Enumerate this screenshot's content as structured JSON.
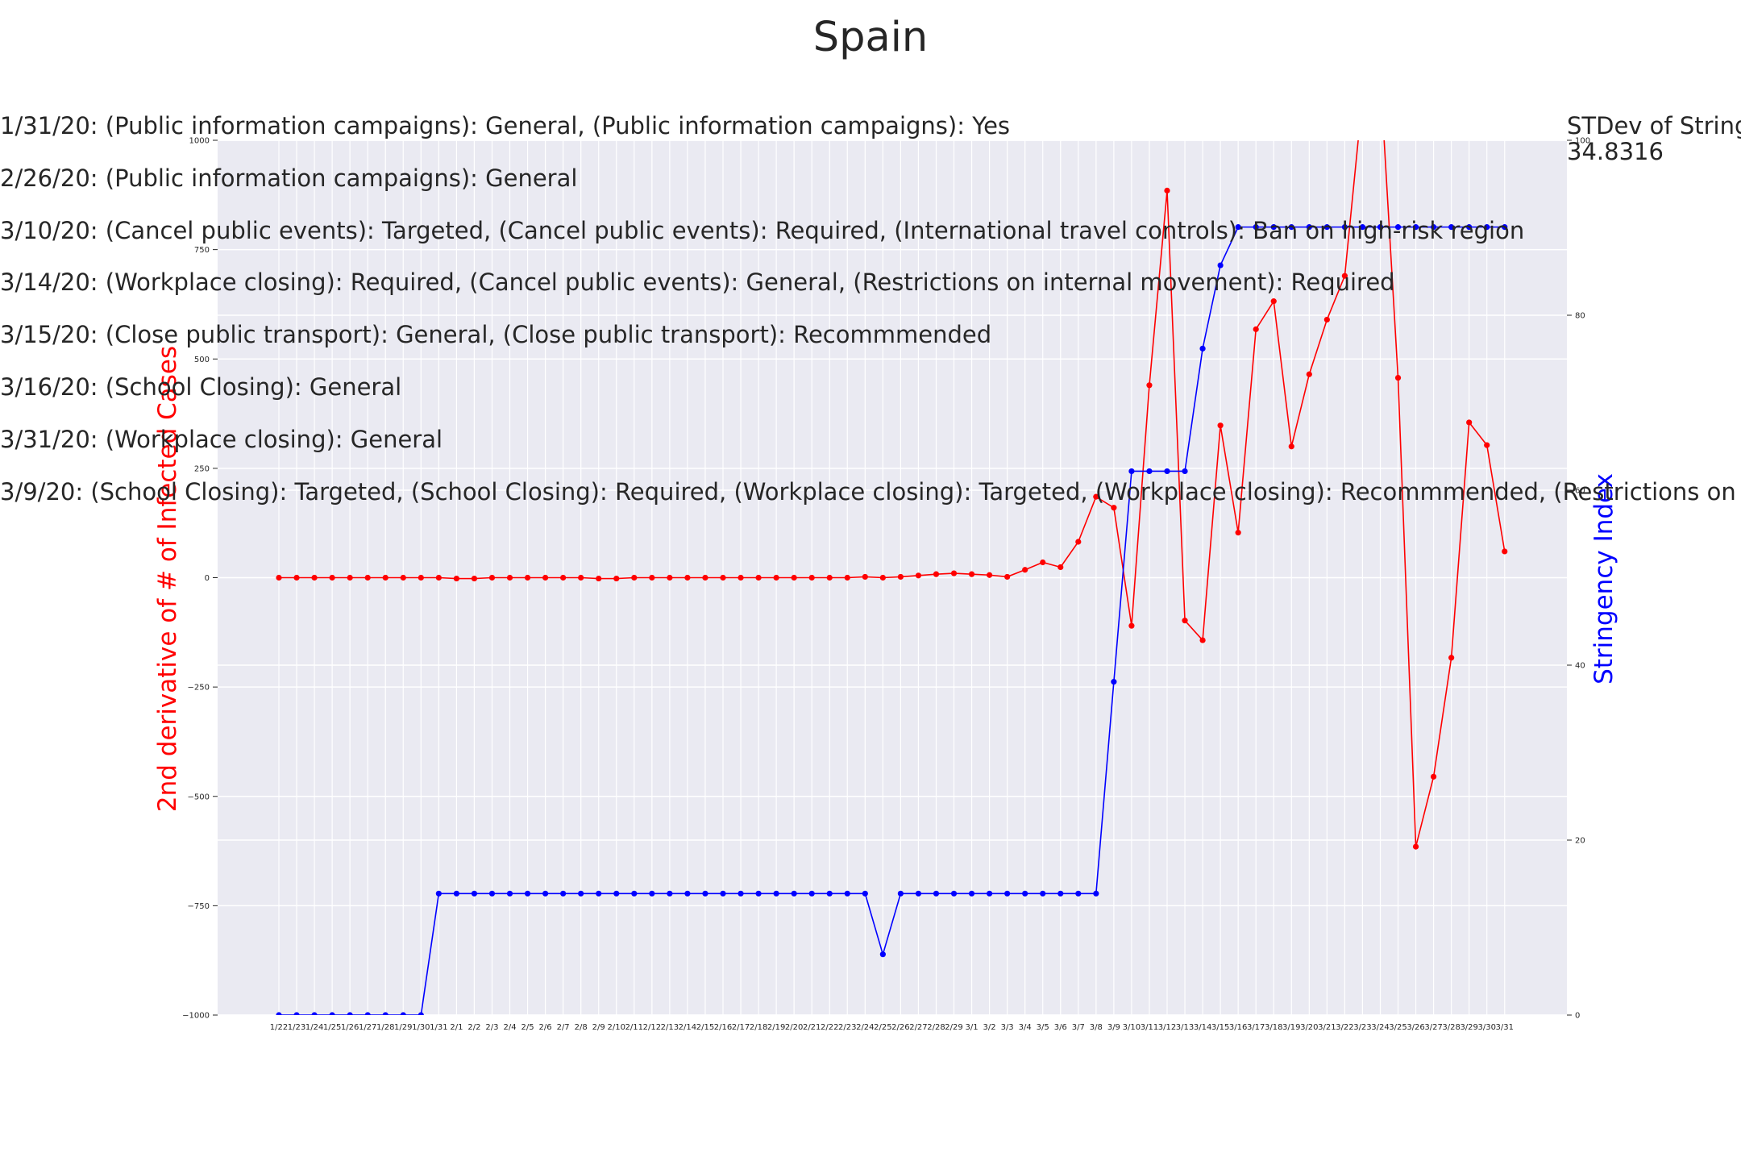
{
  "chart_data": {
    "type": "line",
    "title": "Spain",
    "x": [
      "1/22",
      "1/23",
      "1/24",
      "1/25",
      "1/26",
      "1/27",
      "1/28",
      "1/29",
      "1/30",
      "1/31",
      "2/1",
      "2/2",
      "2/3",
      "2/4",
      "2/5",
      "2/6",
      "2/7",
      "2/8",
      "2/9",
      "2/10",
      "2/11",
      "2/12",
      "2/13",
      "2/14",
      "2/15",
      "2/16",
      "2/17",
      "2/18",
      "2/19",
      "2/20",
      "2/21",
      "2/22",
      "2/23",
      "2/24",
      "2/25",
      "2/26",
      "2/27",
      "2/28",
      "2/29",
      "3/1",
      "3/2",
      "3/3",
      "3/4",
      "3/5",
      "3/6",
      "3/7",
      "3/8",
      "3/9",
      "3/10",
      "3/11",
      "3/12",
      "3/13",
      "3/14",
      "3/15",
      "3/16",
      "3/17",
      "3/18",
      "3/19",
      "3/20",
      "3/21",
      "3/22",
      "3/23",
      "3/24",
      "3/25",
      "3/26",
      "3/27",
      "3/28",
      "3/29",
      "3/30",
      "3/31"
    ],
    "series": [
      {
        "axis": "left",
        "color": "#ff0000",
        "values": [
          0,
          0,
          0,
          0,
          0,
          0,
          0,
          0,
          0,
          0,
          -2,
          -2,
          0,
          0,
          0,
          0,
          0,
          0,
          -2,
          -2,
          0,
          0,
          0,
          0,
          0,
          0,
          0,
          0,
          0,
          0,
          0,
          0,
          0,
          2,
          0,
          2,
          5,
          8,
          10,
          8,
          6,
          2,
          18,
          35,
          24,
          82,
          185,
          160,
          -110,
          440,
          885,
          -98,
          -143,
          348,
          103,
          568,
          632,
          300,
          465,
          590,
          690,
          1100,
          1150,
          457,
          -615,
          -455,
          -183,
          355,
          303,
          60
        ]
      },
      {
        "axis": "right",
        "color": "#0000ff",
        "values": [
          0,
          0,
          0,
          0,
          0,
          0,
          0,
          0,
          0,
          13.89,
          13.89,
          13.89,
          13.89,
          13.89,
          13.89,
          13.89,
          13.89,
          13.89,
          13.89,
          13.89,
          13.89,
          13.89,
          13.89,
          13.89,
          13.89,
          13.89,
          13.89,
          13.89,
          13.89,
          13.89,
          13.89,
          13.89,
          13.89,
          13.89,
          6.94,
          13.89,
          13.89,
          13.89,
          13.89,
          13.89,
          13.89,
          13.89,
          13.89,
          13.89,
          13.89,
          13.89,
          13.89,
          38.1,
          62.17,
          62.17,
          62.17,
          62.17,
          76.19,
          85.71,
          90.08,
          90.08,
          90.08,
          90.08,
          90.08,
          90.08,
          90.08,
          90.08,
          90.08,
          90.08,
          90.08,
          90.08,
          90.08,
          90.08,
          90.08,
          90.08
        ]
      }
    ],
    "left_axis": {
      "label": "2nd derivative of # of Infected Cases",
      "ylim": [
        -1000,
        1000
      ],
      "ticks": [
        "1000",
        "750",
        "500",
        "250",
        "0",
        "−250",
        "−500",
        "−750",
        "−1000"
      ]
    },
    "right_axis": {
      "label": "Stringency Index",
      "ylim": [
        0,
        100
      ],
      "ticks": [
        "0",
        "20",
        "40",
        "60",
        "80",
        "100"
      ]
    },
    "grid": true,
    "annotations": [
      "1/31/20: (Public information campaigns): General, (Public information campaigns): Yes",
      "2/26/20: (Public information campaigns): General",
      "3/10/20: (Cancel public events): Targeted, (Cancel public events): Required, (International travel controls): Ban on high-risk region",
      "3/14/20: (Workplace closing): Required, (Cancel public events): General, (Restrictions on internal movement): Required",
      "3/15/20: (Close public transport): General, (Close public transport): Recommmended",
      "3/16/20: (School Closing): General",
      "3/31/20: (Workplace closing): General",
      "3/9/20: (School Closing): Targeted, (School Closing): Required, (Workplace closing): Targeted, (Workplace closing): Recommmended, (Restrictions on internal movement): Recommmended"
    ],
    "std_label": "STDev of Stringency Index:",
    "std_value": "34.8316"
  }
}
